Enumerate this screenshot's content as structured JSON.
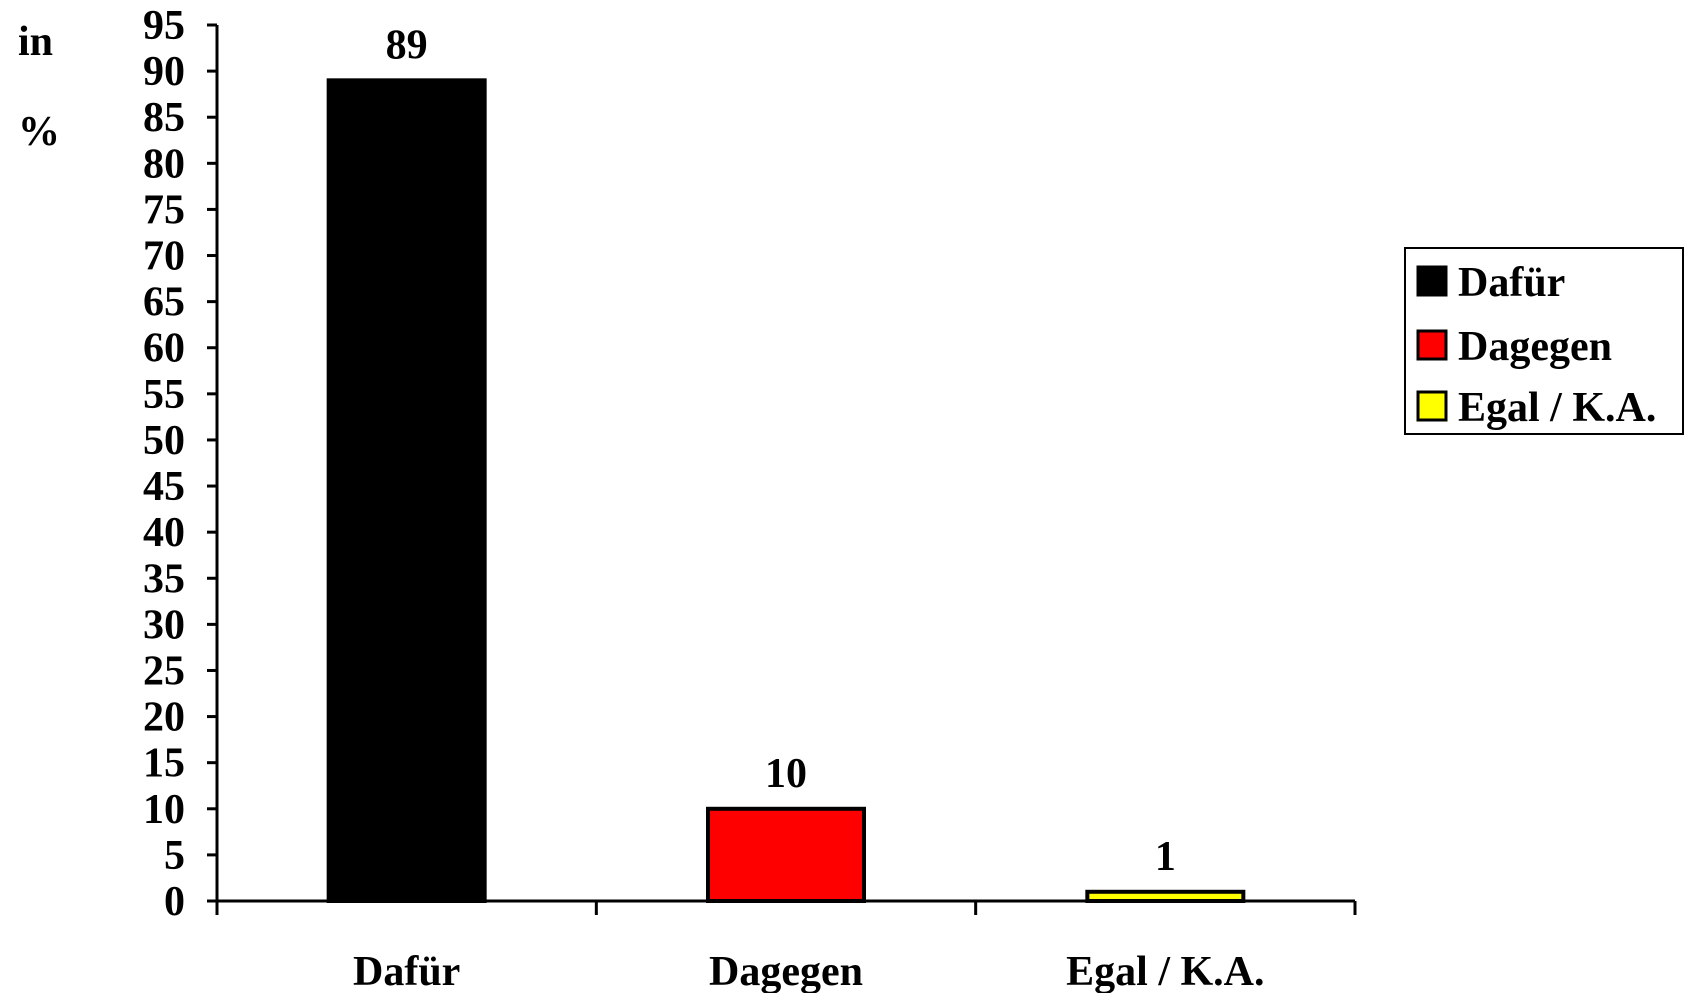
{
  "chart_data": {
    "type": "bar",
    "categories": [
      "Dafür",
      "Dagegen",
      "Egal / K.A."
    ],
    "values": [
      89,
      10,
      1
    ],
    "colors": [
      "#000000",
      "#ff0000",
      "#ffff00"
    ],
    "ylabel_lines": [
      "in",
      "%"
    ],
    "ylim": [
      0,
      95
    ],
    "y_ticks": [
      0,
      5,
      10,
      15,
      20,
      25,
      30,
      35,
      40,
      45,
      50,
      55,
      60,
      65,
      70,
      75,
      80,
      85,
      90,
      95
    ],
    "grid": false,
    "legend_position": "right",
    "data_labels": [
      "89",
      "10",
      "1"
    ]
  }
}
